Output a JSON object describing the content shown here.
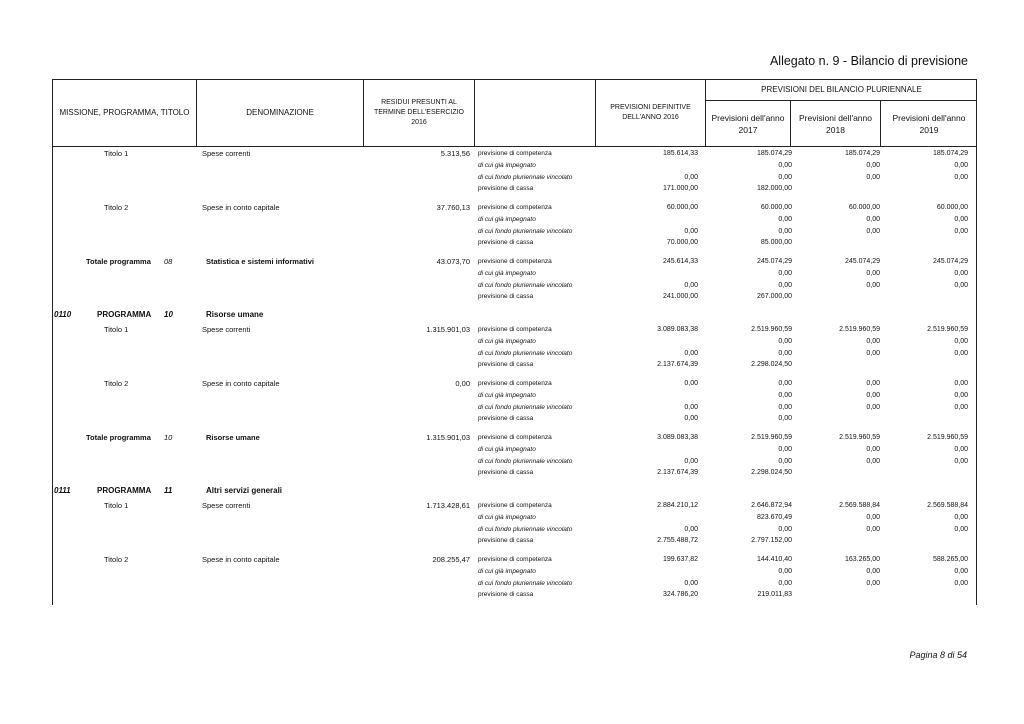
{
  "title": "Allegato n. 9 - Bilancio di previsione",
  "header": {
    "col_missione": "MISSIONE, PROGRAMMA, TITOLO",
    "col_denominazione": "DENOMINAZIONE",
    "col_residui": "RESIDUI PRESUNTI AL TERMINE DELL'ESERCIZIO 2016",
    "col_blank": "",
    "col_previsioni_def": "PREVISIONI DEFINITIVE DELL'ANNO 2016",
    "group_pluriennale": "PREVISIONI DEL BILANCIO PLURIENNALE",
    "col_2017": "Previsioni dell'anno 2017",
    "col_2018": "Previsioni dell'anno 2018",
    "col_2019": "Previsioni dell'anno 2019"
  },
  "row_labels": [
    "previsione di competenza",
    "di cui già impegnato",
    "di cui fondo pluriennale vincolato",
    "previsione di cassa"
  ],
  "sections": [
    {
      "type": "group",
      "title": "Titolo 1",
      "num": "",
      "denom": "Spese correnti",
      "residui": "5.313,56",
      "bold": false,
      "rows": [
        [
          "185.614,33",
          "185.074,29",
          "185.074,29",
          "185.074,29"
        ],
        [
          "",
          "0,00",
          "0,00",
          "0,00"
        ],
        [
          "0,00",
          "0,00",
          "0,00",
          "0,00"
        ],
        [
          "171.000,00",
          "182.000,00",
          "",
          ""
        ]
      ]
    },
    {
      "type": "group",
      "title": "Titolo 2",
      "num": "",
      "denom": "Spese in conto capitale",
      "residui": "37.760,13",
      "bold": false,
      "rows": [
        [
          "60.000,00",
          "60.000,00",
          "60.000,00",
          "60.000,00"
        ],
        [
          "",
          "0,00",
          "0,00",
          "0,00"
        ],
        [
          "0,00",
          "0,00",
          "0,00",
          "0,00"
        ],
        [
          "70.000,00",
          "85.000,00",
          "",
          ""
        ]
      ]
    },
    {
      "type": "group",
      "title": "Totale programma",
      "num": "08",
      "denom": "Statistica e sistemi informativi",
      "residui": "43.073,70",
      "bold": true,
      "rows": [
        [
          "245.614,33",
          "245.074,29",
          "245.074,29",
          "245.074,29"
        ],
        [
          "",
          "0,00",
          "0,00",
          "0,00"
        ],
        [
          "0,00",
          "0,00",
          "0,00",
          "0,00"
        ],
        [
          "241.000,00",
          "267.000,00",
          "",
          ""
        ]
      ]
    },
    {
      "type": "program",
      "code": "0110",
      "label": "PROGRAMMA",
      "num": "10",
      "denom": "Risorse umane"
    },
    {
      "type": "group",
      "title": "Titolo 1",
      "num": "",
      "denom": "Spese correnti",
      "residui": "1.315.901,03",
      "bold": false,
      "rows": [
        [
          "3.089.083,38",
          "2.519.960,59",
          "2.519.960,59",
          "2.519.960,59"
        ],
        [
          "",
          "0,00",
          "0,00",
          "0,00"
        ],
        [
          "0,00",
          "0,00",
          "0,00",
          "0,00"
        ],
        [
          "2.137.674,39",
          "2.298.024,50",
          "",
          ""
        ]
      ]
    },
    {
      "type": "group",
      "title": "Titolo 2",
      "num": "",
      "denom": "Spese in conto capitale",
      "residui": "0,00",
      "bold": false,
      "rows": [
        [
          "0,00",
          "0,00",
          "0,00",
          "0,00"
        ],
        [
          "",
          "0,00",
          "0,00",
          "0,00"
        ],
        [
          "0,00",
          "0,00",
          "0,00",
          "0,00"
        ],
        [
          "0,00",
          "0,00",
          "",
          ""
        ]
      ]
    },
    {
      "type": "group",
      "title": "Totale programma",
      "num": "10",
      "denom": "Risorse umane",
      "residui": "1.315.901,03",
      "bold": true,
      "rows": [
        [
          "3.089.083,38",
          "2.519.960,59",
          "2.519.960,59",
          "2.519.960,59"
        ],
        [
          "",
          "0,00",
          "0,00",
          "0,00"
        ],
        [
          "0,00",
          "0,00",
          "0,00",
          "0,00"
        ],
        [
          "2.137.674,39",
          "2.298.024,50",
          "",
          ""
        ]
      ]
    },
    {
      "type": "program",
      "code": "0111",
      "label": "PROGRAMMA",
      "num": "11",
      "denom": "Altri servizi generali"
    },
    {
      "type": "group",
      "title": "Titolo 1",
      "num": "",
      "denom": "Spese correnti",
      "residui": "1.713.428,61",
      "bold": false,
      "rows": [
        [
          "2.884.210,12",
          "2.646.872,94",
          "2.569.588,84",
          "2.569.588,84"
        ],
        [
          "",
          "823.670,49",
          "0,00",
          "0,00"
        ],
        [
          "0,00",
          "0,00",
          "0,00",
          "0,00"
        ],
        [
          "2.755.488,72",
          "2.797.152,00",
          "",
          ""
        ]
      ]
    },
    {
      "type": "group",
      "title": "Titolo 2",
      "num": "",
      "denom": "Spese in conto capitale",
      "residui": "208.255,47",
      "bold": false,
      "rows": [
        [
          "199.637,82",
          "144.410,40",
          "163.265,00",
          "588.265,00"
        ],
        [
          "",
          "0,00",
          "0,00",
          "0,00"
        ],
        [
          "0,00",
          "0,00",
          "0,00",
          "0,00"
        ],
        [
          "324.786,20",
          "219.011,83",
          "",
          ""
        ]
      ]
    }
  ],
  "footer": "Pagina 8 di 54"
}
